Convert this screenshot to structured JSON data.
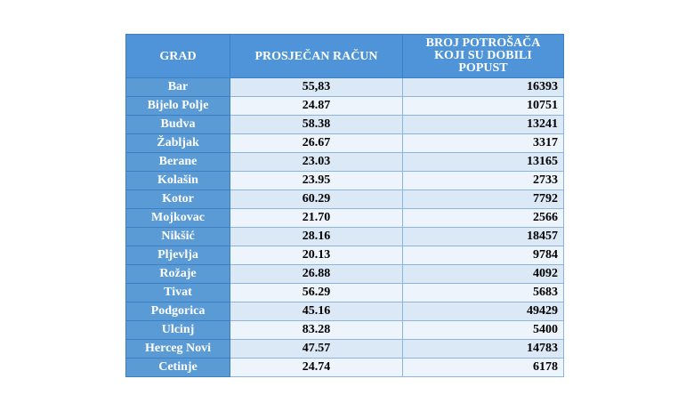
{
  "table": {
    "headers": {
      "city": "GRAD",
      "avg_bill": "PROSJEČAN RAČUN",
      "discount_count_line1": "BROJ POTROŠAČA",
      "discount_count_line2": "KOJI SU DOBILI",
      "discount_count_line3": "POPUST"
    },
    "rows": [
      {
        "city": "Bar",
        "avg_bill": "55,83",
        "count": "16393"
      },
      {
        "city": "Bijelo Polje",
        "avg_bill": "24.87",
        "count": "10751"
      },
      {
        "city": "Budva",
        "avg_bill": "58.38",
        "count": "13241"
      },
      {
        "city": "Žabljak",
        "avg_bill": "26.67",
        "count": "3317"
      },
      {
        "city": "Berane",
        "avg_bill": "23.03",
        "count": "13165"
      },
      {
        "city": "Kolašin",
        "avg_bill": "23.95",
        "count": "2733"
      },
      {
        "city": "Kotor",
        "avg_bill": "60.29",
        "count": "7792"
      },
      {
        "city": "Mojkovac",
        "avg_bill": "21.70",
        "count": "2566"
      },
      {
        "city": "Nikšić",
        "avg_bill": "28.16",
        "count": "18457"
      },
      {
        "city": "Pljevlja",
        "avg_bill": "20.13",
        "count": "9784"
      },
      {
        "city": "Rožaje",
        "avg_bill": "26.88",
        "count": "4092"
      },
      {
        "city": "Tivat",
        "avg_bill": "56.29",
        "count": "5683"
      },
      {
        "city": "Podgorica",
        "avg_bill": "45.16",
        "count": "49429"
      },
      {
        "city": "Ulcinj",
        "avg_bill": "83.28",
        "count": "5400"
      },
      {
        "city": "Herceg Novi",
        "avg_bill": "47.57",
        "count": "14783"
      },
      {
        "city": "Cetinje",
        "avg_bill": "24.74",
        "count": "6178"
      }
    ]
  },
  "colors": {
    "header_bg": "#4f94d8",
    "city_bg": "#5b9bd5",
    "cell_bg": "#dbe8f6",
    "border": "#8db3e2"
  }
}
